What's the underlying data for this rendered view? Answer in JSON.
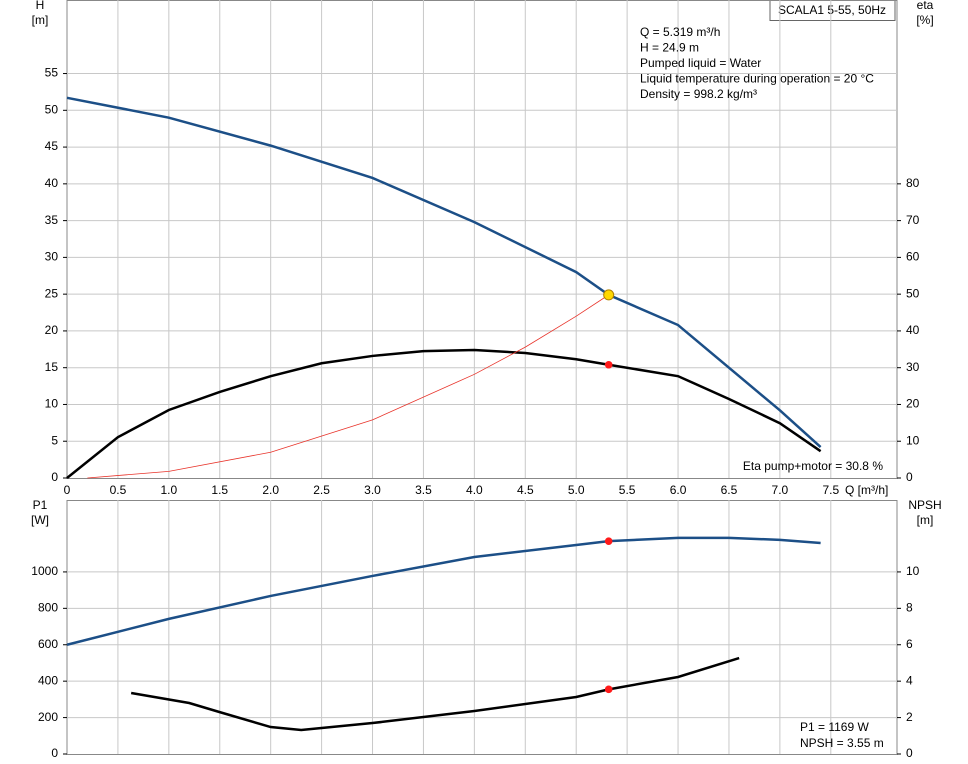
{
  "chart_data": [
    {
      "type": "line",
      "title": "SCALA1 5-55, 50Hz",
      "ylabel": "H",
      "yunit": "[m]",
      "y2label": "eta",
      "y2unit": "[%]",
      "xlabel": "Q [m³/h]",
      "info": [
        "Q = 5.319 m³/h",
        "H = 24.9 m",
        "Pumped liquid = Water",
        "Liquid temperature during operation = 20 °C",
        "Density = 998.2 kg/m³"
      ],
      "note": "Eta pump+motor = 30.8 %",
      "xlim": [
        0,
        8.15
      ],
      "xticks": [
        0,
        0.5,
        {
          "value": 1,
          "label": "1.0"
        },
        1.5,
        {
          "value": 2,
          "label": "2.0"
        },
        2.5,
        {
          "value": 3,
          "label": "3.0"
        },
        3.5,
        {
          "value": 4,
          "label": "4.0"
        },
        4.5,
        {
          "value": 5,
          "label": "5.0"
        },
        5.5,
        {
          "value": 6,
          "label": "6.0"
        },
        6.5,
        {
          "value": 7,
          "label": "7.0"
        },
        7.5
      ],
      "ylim": [
        0,
        65
      ],
      "yticks": [
        0,
        5,
        10,
        15,
        20,
        25,
        30,
        35,
        40,
        45,
        50,
        55
      ],
      "y2lim": [
        0,
        130
      ],
      "y2ticks": [
        0,
        10,
        20,
        30,
        40,
        50,
        60,
        70,
        80
      ],
      "grid": true,
      "series": [
        {
          "color": "#1c4f87",
          "width": 2.5,
          "x": [
            0,
            1,
            2,
            3,
            4,
            5,
            5.319,
            6,
            7,
            7.4
          ],
          "values": [
            51.7,
            49,
            45.2,
            40.8,
            34.8,
            28,
            24.9,
            20.8,
            9.2,
            4.2
          ]
        },
        {
          "color": "#000000",
          "width": 2.5,
          "axis": "y2",
          "x": [
            0,
            0.5,
            1,
            1.5,
            2,
            2.5,
            3,
            3.5,
            4,
            4.5,
            5,
            5.319,
            6,
            6.5,
            7,
            7.4
          ],
          "values": [
            0,
            11.1,
            18.5,
            23.4,
            27.7,
            31.2,
            33.2,
            34.5,
            34.8,
            34,
            32.3,
            30.8,
            27.7,
            21.5,
            14.9,
            7.3
          ]
        },
        {
          "color": "#e8332a",
          "width": 0.8,
          "x": [
            0.2,
            1,
            2,
            3,
            4,
            4.5,
            5,
            5.319
          ],
          "values": [
            0,
            0.9,
            3.5,
            7.9,
            14.1,
            17.8,
            22,
            24.9
          ]
        }
      ],
      "points": [
        {
          "x": 5.319,
          "y": 24.9,
          "color": "#ffd800"
        },
        {
          "x": 5.319,
          "y": 30.8,
          "axis": "y2",
          "color": "#ff1a1a"
        }
      ]
    },
    {
      "type": "line",
      "ylabel": "P1",
      "yunit": "[W]",
      "y2label": "NPSH",
      "y2unit": "[m]",
      "info": [
        "P1 = 1169 W",
        "NPSH = 3.55 m"
      ],
      "ylim": [
        0,
        1395
      ],
      "yticks": [
        0,
        200,
        400,
        600,
        800,
        1000
      ],
      "y2lim": [
        0,
        13.95
      ],
      "y2ticks": [
        0,
        2,
        4,
        6,
        8,
        10
      ],
      "grid": true,
      "series": [
        {
          "color": "#1c4f87",
          "width": 2.5,
          "x": [
            0,
            1,
            2,
            3,
            4,
            5,
            5.319,
            6,
            6.5,
            7,
            7.4
          ],
          "values": [
            600,
            742,
            868,
            978,
            1082,
            1148,
            1169,
            1187,
            1187,
            1176,
            1159
          ]
        },
        {
          "color": "#000000",
          "width": 2.5,
          "axis": "y2",
          "x": [
            0.63,
            1.2,
            1.5,
            2,
            2.3,
            3,
            4,
            5,
            5.319,
            6,
            6.6
          ],
          "values": [
            3.35,
            2.8,
            2.3,
            1.48,
            1.32,
            1.7,
            2.36,
            3.13,
            3.55,
            4.23,
            5.27
          ]
        }
      ],
      "points": [
        {
          "x": 5.319,
          "y": 1169,
          "color": "#ff1a1a"
        },
        {
          "x": 5.319,
          "y": 3.55,
          "axis": "y2",
          "color": "#ff1a1a"
        }
      ]
    }
  ]
}
